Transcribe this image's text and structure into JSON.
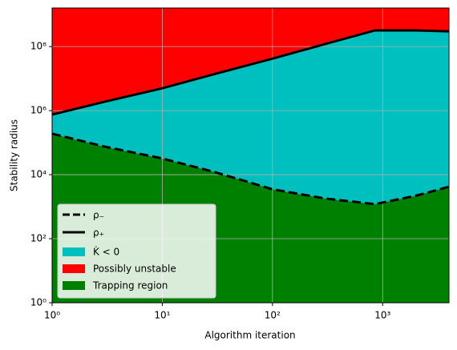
{
  "chart_data": {
    "type": "log-region",
    "xlabel": "Algorithm iteration",
    "ylabel": "Stability radius",
    "x": [
      1,
      3,
      10,
      30,
      100,
      300,
      850,
      2000,
      4000
    ],
    "series": [
      {
        "name": "ρ₋",
        "color": "#000000",
        "dash": true,
        "values": [
          190000,
          75000,
          32000,
          12000,
          3500,
          1800,
          1200,
          2200,
          4200
        ]
      },
      {
        "name": "ρ₊",
        "color": "#000000",
        "dash": false,
        "values": [
          750000,
          1900000,
          5000000,
          14000000,
          42000000,
          120000000,
          320000000,
          320000000,
          300000000
        ]
      }
    ],
    "regions": [
      {
        "name": "K̇ < 0",
        "color": "#00bfbf"
      },
      {
        "name": "Possibly unstable",
        "color": "#ff0000"
      },
      {
        "name": "Trapping region",
        "color": "#008000"
      }
    ],
    "log_x": true,
    "log_y": true,
    "grid": true,
    "legend": "lower left",
    "xlim": [
      1,
      4000
    ],
    "ylim": [
      1,
      1600000000
    ],
    "xticks": [
      {
        "value": 1,
        "label": "10⁰"
      },
      {
        "value": 10,
        "label": "10¹"
      },
      {
        "value": 100,
        "label": "10²"
      },
      {
        "value": 1000,
        "label": "10³"
      }
    ],
    "yticks": [
      {
        "value": 1,
        "label": "10⁰"
      },
      {
        "value": 100,
        "label": "10²"
      },
      {
        "value": 10000,
        "label": "10⁴"
      },
      {
        "value": 1000000,
        "label": "10⁶"
      },
      {
        "value": 100000000,
        "label": "10⁸"
      }
    ]
  }
}
